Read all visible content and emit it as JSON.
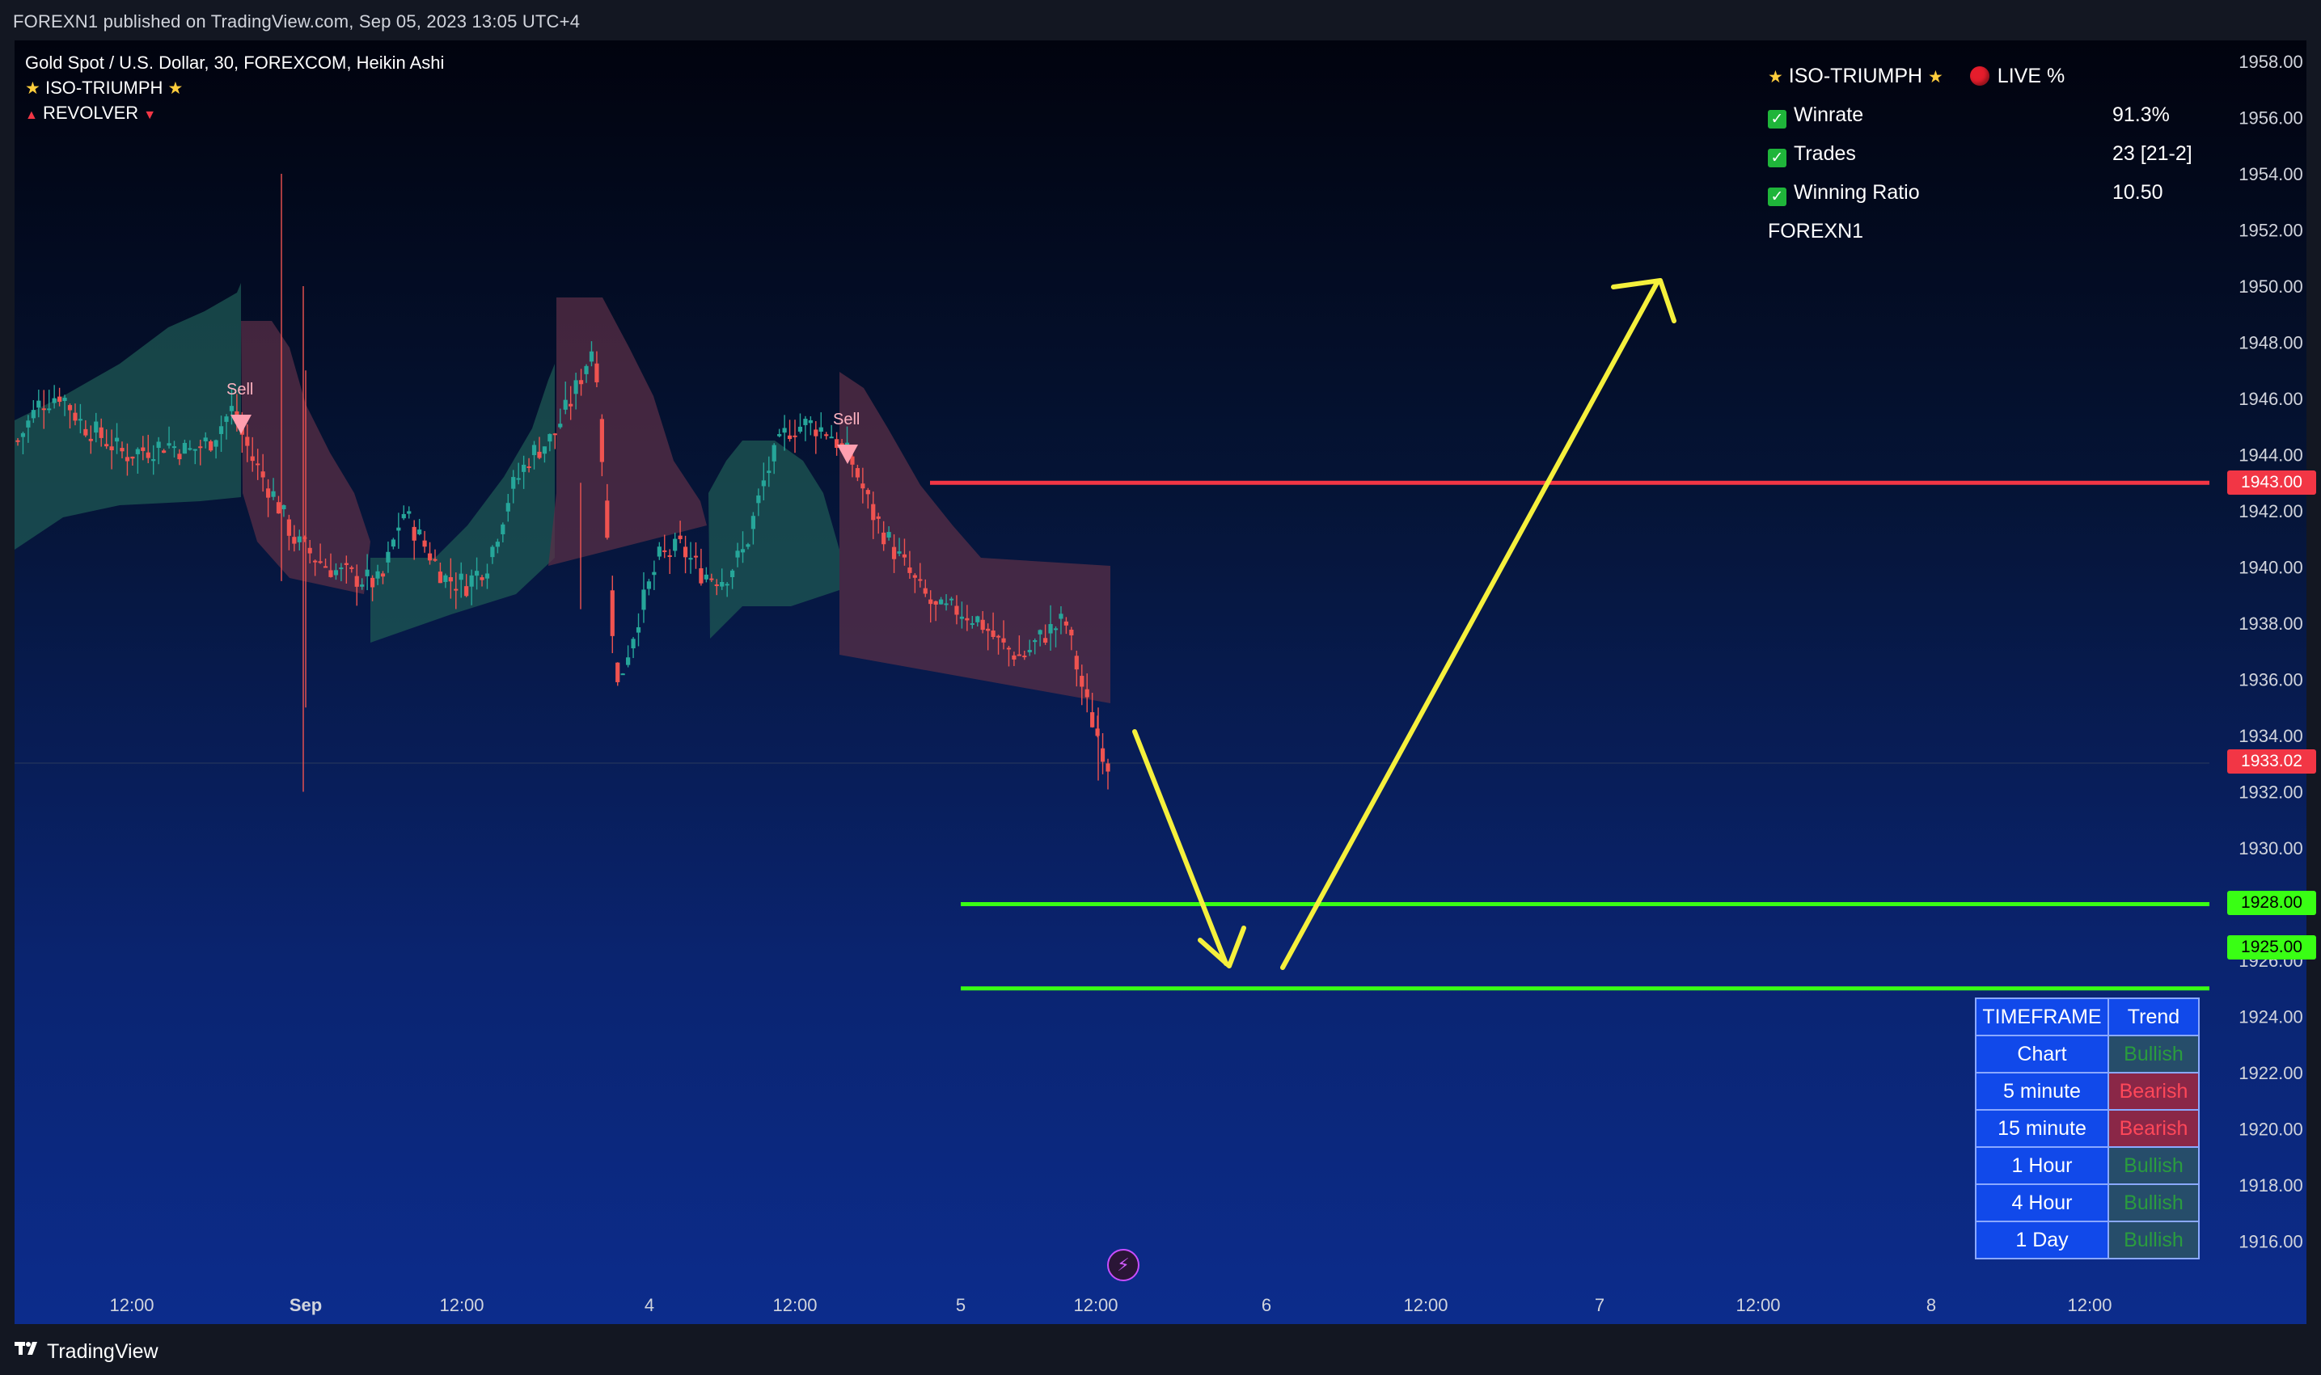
{
  "header": {
    "published_line": "FOREXN1 published on TradingView.com, Sep 05, 2023 13:05 UTC+4"
  },
  "legend": {
    "symbol_line": "Gold Spot / U.S. Dollar, 30, FOREXCOM, Heikin Ashi",
    "indicator_1": "ISO-TRIUMPH",
    "indicator_2": "REVOLVER"
  },
  "stats_panel": {
    "title": "ISO-TRIUMPH",
    "live_label": "LIVE %",
    "rows": [
      {
        "label": "Winrate",
        "value": "91.3%"
      },
      {
        "label": "Trades",
        "value": "23 [21-2]"
      },
      {
        "label": "Winning Ratio",
        "value": "10.50"
      }
    ],
    "author": "FOREXN1"
  },
  "signals": [
    {
      "label": "Sell"
    },
    {
      "label": "Sell"
    }
  ],
  "price_axis": {
    "ticks": [
      "1958.00",
      "1956.00",
      "1954.00",
      "1952.00",
      "1950.00",
      "1948.00",
      "1946.00",
      "1944.00",
      "1942.00",
      "1940.00",
      "1938.00",
      "1936.00",
      "1934.00",
      "1932.00",
      "1930.00",
      "1926.00",
      "1924.00",
      "1922.00",
      "1920.00",
      "1918.00",
      "1916.00"
    ],
    "tick_values": [
      1958,
      1956,
      1954,
      1952,
      1950,
      1948,
      1946,
      1944,
      1942,
      1940,
      1938,
      1936,
      1934,
      1932,
      1930,
      1926,
      1924,
      1922,
      1920,
      1918,
      1916
    ],
    "labels": [
      {
        "text": "1943.00",
        "kind": "red"
      },
      {
        "text": "1933.02",
        "kind": "red"
      },
      {
        "text": "1928.00",
        "kind": "green"
      },
      {
        "text": "1925.00",
        "kind": "green"
      }
    ]
  },
  "time_axis": {
    "labels": [
      "12:00",
      "Sep",
      "12:00",
      "4",
      "12:00",
      "5",
      "12:00",
      "6",
      "12:00",
      "7",
      "12:00",
      "8",
      "12:00"
    ]
  },
  "timeframe_table": {
    "header": {
      "col1": "TIMEFRAME",
      "col2": "Trend"
    },
    "rows": [
      {
        "tf": "Chart",
        "trend": "Bullish"
      },
      {
        "tf": "5 minute",
        "trend": "Bearish"
      },
      {
        "tf": "15 minute",
        "trend": "Bearish"
      },
      {
        "tf": "1 Hour",
        "trend": "Bullish"
      },
      {
        "tf": "4 Hour",
        "trend": "Bullish"
      },
      {
        "tf": "1 Day",
        "trend": "Bullish"
      }
    ]
  },
  "chart_data": {
    "type": "candlestick",
    "symbol": "XAUUSD",
    "timeframe": "30",
    "style": "Heikin Ashi",
    "y_range": [
      1915,
      1959
    ],
    "levels": [
      {
        "price": 1943.0,
        "color": "#f23645"
      },
      {
        "price": 1928.0,
        "color": "#39ff14"
      },
      {
        "price": 1925.0,
        "color": "#39ff14"
      }
    ],
    "last_price": 1933.02,
    "close_path": [
      1944.5,
      1945.8,
      1946.2,
      1945.1,
      1944.6,
      1944.0,
      1944.2,
      1944.4,
      1944.1,
      1944.5,
      1945.6,
      1943.8,
      1942.5,
      1940.9,
      1940.3,
      1939.8,
      1939.6,
      1939.4,
      1942.0,
      1940.8,
      1939.6,
      1939.4,
      1940.2,
      1942.6,
      1944.0,
      1944.6,
      1946.1,
      1948.1,
      1935.6,
      1938.2,
      1940.3,
      1940.7,
      1939.8,
      1939.6,
      1940.6,
      1943.3,
      1944.9,
      1945.1,
      1944.8,
      1943.8,
      1941.9,
      1940.6,
      1939.4,
      1938.4,
      1938.5,
      1938.1,
      1937.2,
      1936.8,
      1937.6,
      1938.1,
      1935.1,
      1933.0
    ],
    "colors": {
      "bull": "#26a69a",
      "bear": "#ef5350",
      "bull_cloud": "#1f5a54",
      "bear_cloud": "#5b2f46",
      "arrows": "#f5f03c"
    }
  }
}
